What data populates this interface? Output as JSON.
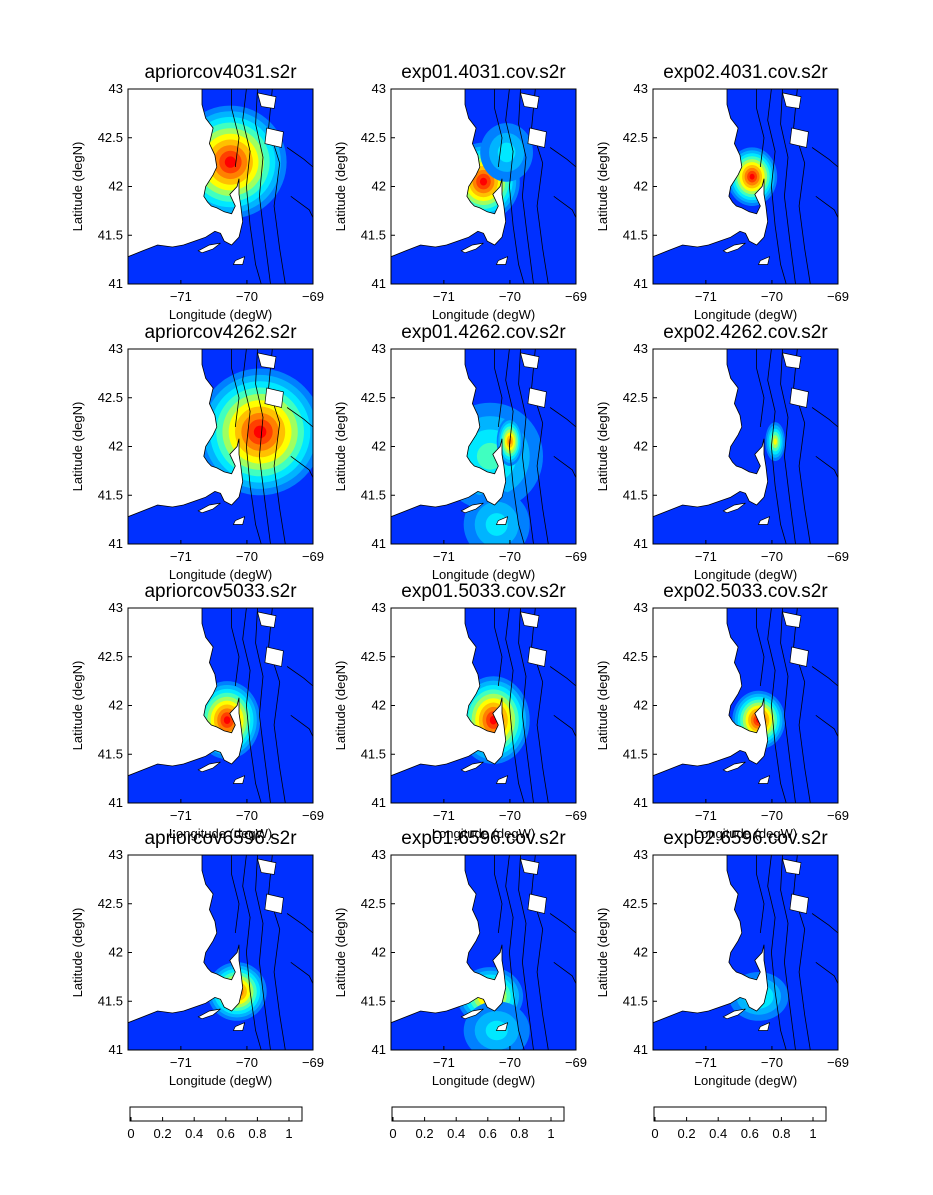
{
  "chart_data": {
    "type": "heatmap",
    "panels": [
      {
        "title": "apriorcov4031.s2r",
        "xlabel": "Longitude (degW)",
        "ylabel": "Latitude (degN)",
        "blobs": [
          {
            "lon": -70.25,
            "lat": 42.25,
            "peak": 1.0,
            "rx": 0.85,
            "ry": 0.58
          }
        ]
      },
      {
        "title": "exp01.4031.cov.s2r",
        "xlabel": "Longitude (degW)",
        "ylabel": "Latitude (degN)",
        "blobs": [
          {
            "lon": -70.4,
            "lat": 42.05,
            "peak": 1.0,
            "rx": 0.55,
            "ry": 0.4
          },
          {
            "lon": -70.05,
            "lat": 42.35,
            "peak": 0.3,
            "rx": 0.4,
            "ry": 0.3
          }
        ]
      },
      {
        "title": "exp02.4031.cov.s2r",
        "xlabel": "Longitude (degW)",
        "ylabel": "Latitude (degN)",
        "blobs": [
          {
            "lon": -70.3,
            "lat": 42.1,
            "peak": 1.0,
            "rx": 0.38,
            "ry": 0.3
          }
        ]
      },
      {
        "title": "apriorcov4262.s2r",
        "xlabel": "Longitude (degW)",
        "ylabel": "Latitude (degN)",
        "blobs": [
          {
            "lon": -69.8,
            "lat": 42.15,
            "peak": 1.0,
            "rx": 0.95,
            "ry": 0.65
          }
        ]
      },
      {
        "title": "exp01.4262.cov.s2r",
        "xlabel": "Longitude (degW)",
        "ylabel": "Latitude (degN)",
        "blobs": [
          {
            "lon": -70.3,
            "lat": 41.9,
            "peak": 0.35,
            "rx": 0.8,
            "ry": 0.55
          },
          {
            "lon": -70.0,
            "lat": 42.05,
            "peak": 0.75,
            "rx": 0.2,
            "ry": 0.25
          },
          {
            "lon": -70.2,
            "lat": 41.2,
            "peak": 0.3,
            "rx": 0.5,
            "ry": 0.35
          }
        ]
      },
      {
        "title": "exp02.4262.cov.s2r",
        "xlabel": "Longitude (degW)",
        "ylabel": "Latitude (degN)",
        "blobs": [
          {
            "lon": -69.95,
            "lat": 42.05,
            "peak": 0.6,
            "rx": 0.15,
            "ry": 0.2
          }
        ]
      },
      {
        "title": "apriorcov5033.s2r",
        "xlabel": "Longitude (degW)",
        "ylabel": "Latitude (degN)",
        "blobs": [
          {
            "lon": -70.3,
            "lat": 41.85,
            "peak": 0.95,
            "rx": 0.5,
            "ry": 0.4
          }
        ]
      },
      {
        "title": "exp01.5033.cov.s2r",
        "xlabel": "Longitude (degW)",
        "ylabel": "Latitude (degN)",
        "blobs": [
          {
            "lon": -70.25,
            "lat": 41.85,
            "peak": 1.0,
            "rx": 0.55,
            "ry": 0.45
          }
        ]
      },
      {
        "title": "exp02.5033.cov.s2r",
        "xlabel": "Longitude (degW)",
        "ylabel": "Latitude (degN)",
        "blobs": [
          {
            "lon": -70.2,
            "lat": 41.85,
            "peak": 1.0,
            "rx": 0.4,
            "ry": 0.3
          }
        ]
      },
      {
        "title": "apriorcov6596.s2r",
        "xlabel": "Longitude (degW)",
        "ylabel": "Latitude (degN)",
        "blobs": [
          {
            "lon": -70.15,
            "lat": 41.6,
            "peak": 0.85,
            "rx": 0.45,
            "ry": 0.3
          }
        ]
      },
      {
        "title": "exp01.6596.cov.s2r",
        "xlabel": "Longitude (degW)",
        "ylabel": "Latitude (degN)",
        "blobs": [
          {
            "lon": -70.3,
            "lat": 41.55,
            "peak": 0.8,
            "rx": 0.5,
            "ry": 0.3
          },
          {
            "lon": -70.2,
            "lat": 41.2,
            "peak": 0.3,
            "rx": 0.5,
            "ry": 0.3
          }
        ]
      },
      {
        "title": "exp02.6596.cov.s2r",
        "xlabel": "Longitude (degW)",
        "ylabel": "Latitude (degN)",
        "blobs": [
          {
            "lon": -70.2,
            "lat": 41.55,
            "peak": 0.4,
            "rx": 0.45,
            "ry": 0.25
          }
        ]
      }
    ],
    "xlim": [
      -71.8,
      -69
    ],
    "ylim": [
      41,
      43
    ],
    "xticks": [
      -71,
      -70,
      -69
    ],
    "xtick_labels": [
      "−71",
      "−70",
      "−69"
    ],
    "yticks": [
      41,
      41.5,
      42,
      42.5,
      43
    ],
    "ytick_labels": [
      "41",
      "41.5",
      "42",
      "42.5",
      "43"
    ],
    "colorbar": {
      "ticks": [
        0,
        0.2,
        0.4,
        0.6,
        0.8,
        1
      ],
      "tick_labels": [
        "0",
        "0.2",
        "0.4",
        "0.6",
        "0.8",
        "1"
      ],
      "colors": [
        "#0030ff",
        "#0080ff",
        "#00b4ff",
        "#00e8ff",
        "#40ffc0",
        "#a0ff60",
        "#ffff00",
        "#ffc000",
        "#ff8000",
        "#ff4000",
        "#ff0000"
      ]
    },
    "land_color": "#ffffff",
    "ocean_base_color": "#0030ff",
    "contour_color": "#000000",
    "grid": false
  }
}
